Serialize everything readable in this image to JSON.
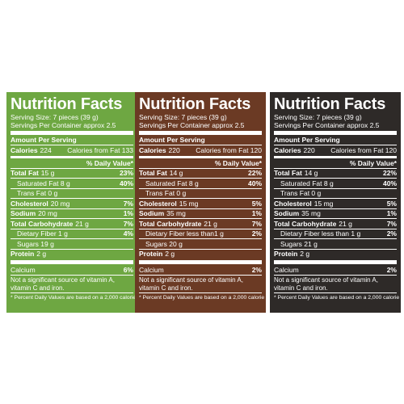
{
  "panels": [
    {
      "title": "Nutrition Facts",
      "serving_size": "Serving Size: 7 pieces (39 g)",
      "servings_per": "Servings Per Container approx 2.5",
      "amount_per": "Amount Per Serving",
      "calories_label": "Calories",
      "calories_value": "224",
      "calories_fat": "Calories from Fat 133",
      "dv_header": "% Daily Value*",
      "total_fat_label": "Total Fat",
      "total_fat_value": "15 g",
      "total_fat_dv": "23%",
      "sat_fat": "Saturated Fat 8 g",
      "sat_fat_dv": "40%",
      "trans_fat": "Trans Fat 0 g",
      "chol_label": "Cholesterol",
      "chol_value": "20 mg",
      "chol_dv": "7%",
      "sodium_label": "Sodium",
      "sodium_value": "20 mg",
      "sodium_dv": "1%",
      "carb_label": "Total Carbohydrate",
      "carb_value": "21 g",
      "carb_dv": "7%",
      "fiber": "Dietary Fiber 1 g",
      "fiber_dv": "4%",
      "sugars": "Sugars 19 g",
      "protein_label": "Protein",
      "protein_value": "2 g",
      "calcium": "Calcium",
      "calcium_dv": "6%",
      "note": "Not a significant source of vitamin A, vitamin C and iron.",
      "footnote": "* Percent Daily Values are based on a 2,000 calorie diet."
    },
    {
      "title": "Nutrition Facts",
      "serving_size": "Serving Size: 7 pieces (39 g)",
      "servings_per": "Servings Per Container approx 2.5",
      "amount_per": "Amount Per Serving",
      "calories_label": "Calories",
      "calories_value": "220",
      "calories_fat": "Calories from Fat 120",
      "dv_header": "% Daily Value*",
      "total_fat_label": "Total Fat",
      "total_fat_value": "14 g",
      "total_fat_dv": "22%",
      "sat_fat": "Saturated Fat 8 g",
      "sat_fat_dv": "40%",
      "trans_fat": "Trans Fat 0 g",
      "chol_label": "Cholesterol",
      "chol_value": "15 mg",
      "chol_dv": "5%",
      "sodium_label": "Sodium",
      "sodium_value": "35 mg",
      "sodium_dv": "1%",
      "carb_label": "Total Carbohydrate",
      "carb_value": "21 g",
      "carb_dv": "7%",
      "fiber": "Dietary Fiber less than1 g",
      "fiber_dv": "2%",
      "sugars": "Sugars 20 g",
      "protein_label": "Protein",
      "protein_value": "2 g",
      "calcium": "Calcium",
      "calcium_dv": "2%",
      "note": "Not a significant source of vitamin A, vitamin C and iron.",
      "footnote": "* Percent Daily Values are based on a 2,000 calorie diet."
    },
    {
      "title": "Nutrition Facts",
      "serving_size": "Serving Size: 7 pieces (39 g)",
      "servings_per": "Servings Per Container approx 2.5",
      "amount_per": "Amount Per Serving",
      "calories_label": "Calories",
      "calories_value": "220",
      "calories_fat": "Calories from Fat 120",
      "dv_header": "% Daily Value*",
      "total_fat_label": "Total Fat",
      "total_fat_value": "14 g",
      "total_fat_dv": "22%",
      "sat_fat": "Saturated Fat 8 g",
      "sat_fat_dv": "40%",
      "trans_fat": "Trans Fat 0 g",
      "chol_label": "Cholesterol",
      "chol_value": "15 mg",
      "chol_dv": "5%",
      "sodium_label": "Sodium",
      "sodium_value": "35 mg",
      "sodium_dv": "1%",
      "carb_label": "Total Carbohydrate",
      "carb_value": "21 g",
      "carb_dv": "7%",
      "fiber": "Dietary Fiber less than 1 g",
      "fiber_dv": "2%",
      "sugars": "Sugars 21 g",
      "protein_label": "Protein",
      "protein_value": "2 g",
      "calcium": "Calcium",
      "calcium_dv": "2%",
      "note": "Not a significant source of vitamin A, vitamin C and iron.",
      "footnote": "* Percent Daily Values are based on a 2,000 calorie diet."
    }
  ],
  "colors": {
    "panel_green": "#6ea742",
    "panel_brown": "#6b3a24",
    "panel_black": "#2e2a28",
    "text": "#ffffff"
  }
}
